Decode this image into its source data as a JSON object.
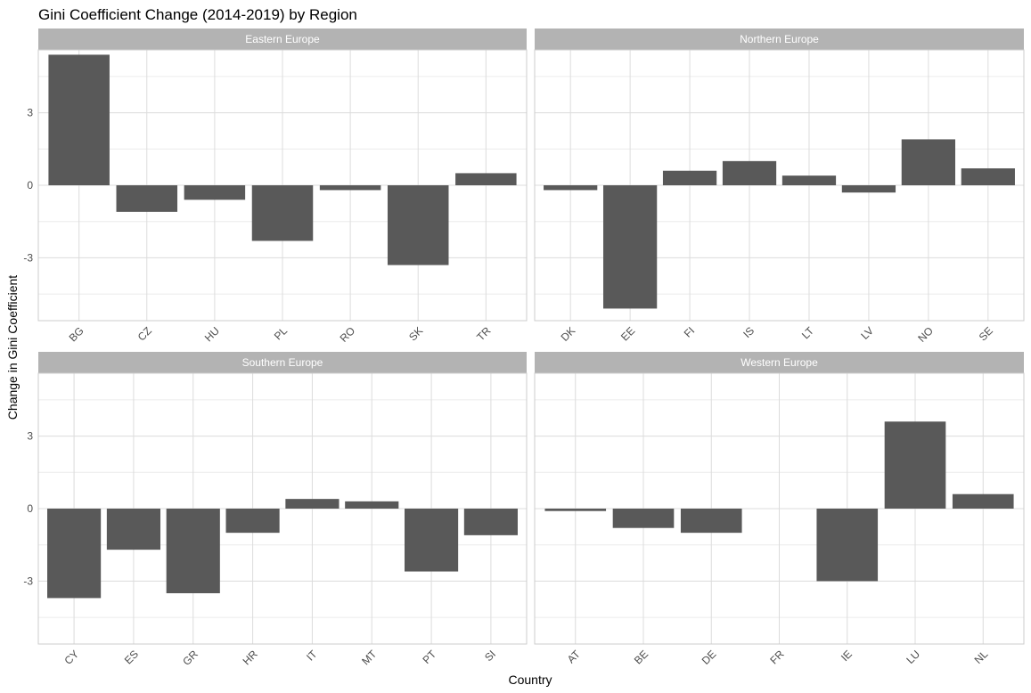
{
  "chart_data": {
    "type": "bar",
    "title": "Gini Coefficient Change (2014-2019) by Region",
    "xlabel": "Country",
    "ylabel": "Change in Gini Coefficient",
    "ylim": [
      -5.6,
      5.6
    ],
    "y_ticks": [
      -3,
      0,
      3
    ],
    "y_tick_labels": [
      "-3",
      "0",
      "3"
    ],
    "grid": true,
    "facet_layout": "2x2",
    "panels": [
      {
        "name": "Eastern Europe",
        "categories": [
          "BG",
          "CZ",
          "HU",
          "PL",
          "RO",
          "SK",
          "TR"
        ],
        "values": [
          5.4,
          -1.1,
          -0.6,
          -2.3,
          -0.2,
          -3.3,
          0.5
        ]
      },
      {
        "name": "Northern Europe",
        "categories": [
          "DK",
          "EE",
          "FI",
          "IS",
          "LT",
          "LV",
          "NO",
          "SE"
        ],
        "values": [
          -0.2,
          -5.1,
          0.6,
          1.0,
          0.4,
          -0.3,
          1.9,
          0.7
        ]
      },
      {
        "name": "Southern Europe",
        "categories": [
          "CY",
          "ES",
          "GR",
          "HR",
          "IT",
          "MT",
          "PT",
          "SI"
        ],
        "values": [
          -3.7,
          -1.7,
          -3.5,
          -1.0,
          0.4,
          0.3,
          -2.6,
          -1.1
        ]
      },
      {
        "name": "Western Europe",
        "categories": [
          "AT",
          "BE",
          "DE",
          "FR",
          "IE",
          "LU",
          "NL"
        ],
        "values": [
          -0.1,
          -0.8,
          -1.0,
          0.0,
          -3.0,
          3.6,
          0.6
        ]
      }
    ]
  }
}
